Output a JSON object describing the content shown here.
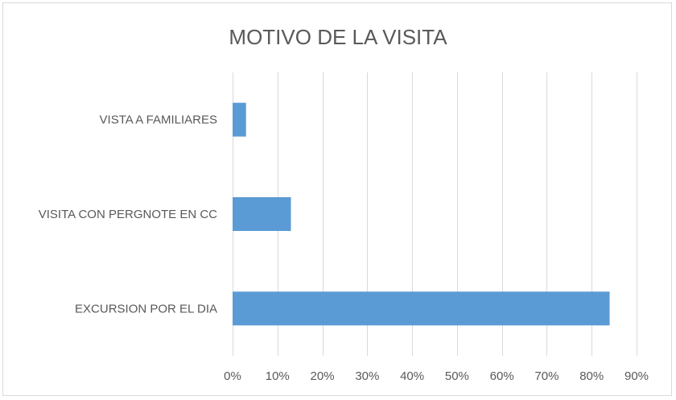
{
  "chart_data": {
    "type": "bar",
    "orientation": "horizontal",
    "title": "MOTIVO DE LA VISITA",
    "xlabel": "",
    "ylabel": "",
    "categories": [
      "VISTA A FAMILIARES",
      "VISITA CON PERGNOTE EN CC",
      "EXCURSION POR EL DIA"
    ],
    "values": [
      0.03,
      0.13,
      0.84
    ],
    "xlim": [
      0,
      0.9
    ],
    "x_ticks": [
      "0%",
      "10%",
      "20%",
      "30%",
      "40%",
      "50%",
      "60%",
      "70%",
      "80%",
      "90%"
    ],
    "grid": true,
    "legend": "none",
    "bar_color": "#5b9bd5"
  }
}
